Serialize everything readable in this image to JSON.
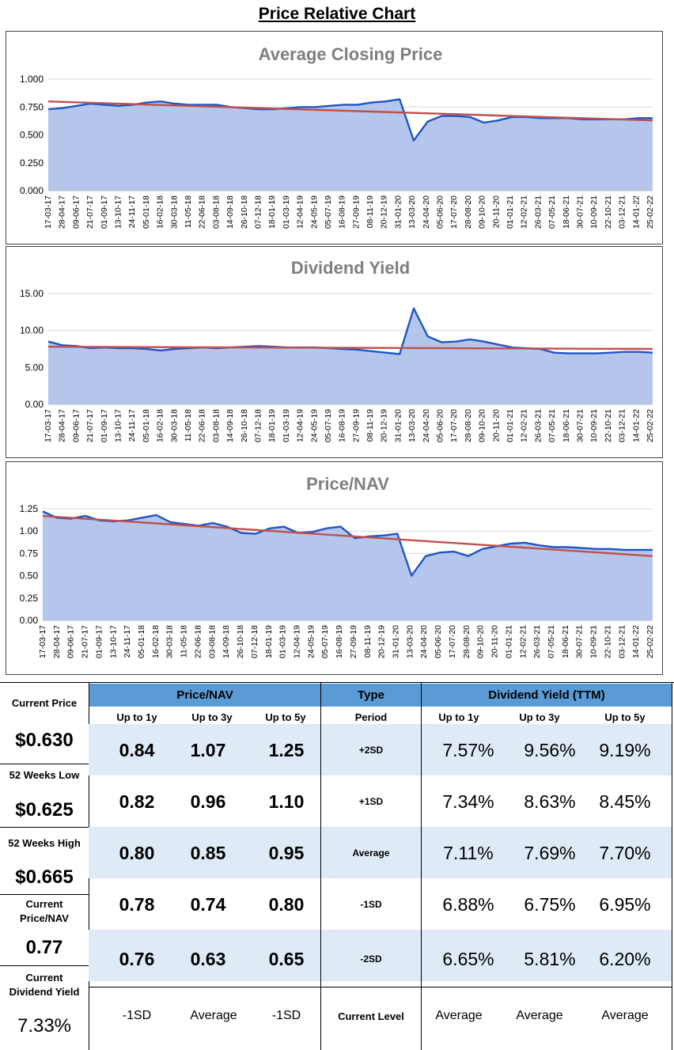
{
  "page_title": "Price Relative Chart",
  "chart_data": [
    {
      "type": "area",
      "title": "Average Closing Price",
      "ylim": [
        0,
        1.0
      ],
      "yticks": [
        "1.000",
        "0.750",
        "0.500",
        "0.250",
        "0.000"
      ],
      "ytick_values": [
        1.0,
        0.75,
        0.5,
        0.25,
        0.0
      ],
      "xticks": [
        "17-03-17",
        "28-04-17",
        "09-06-17",
        "21-07-17",
        "01-09-17",
        "13-10-17",
        "24-11-17",
        "05-01-18",
        "16-02-18",
        "30-03-18",
        "11-05-18",
        "22-06-18",
        "03-08-18",
        "14-09-18",
        "26-10-18",
        "07-12-18",
        "18-01-19",
        "01-03-19",
        "12-04-19",
        "24-05-19",
        "05-07-19",
        "16-08-19",
        "27-09-19",
        "08-11-19",
        "20-12-19",
        "31-01-20",
        "13-03-20",
        "24-04-20",
        "05-06-20",
        "17-07-20",
        "28-08-20",
        "09-10-20",
        "20-11-20",
        "01-01-21",
        "12-02-21",
        "26-03-21",
        "07-05-21",
        "18-06-21",
        "30-07-21",
        "10-09-21",
        "22-10-21",
        "03-12-21",
        "14-01-22",
        "25-02-22"
      ],
      "values": [
        0.73,
        0.74,
        0.76,
        0.78,
        0.77,
        0.76,
        0.77,
        0.79,
        0.8,
        0.78,
        0.77,
        0.77,
        0.77,
        0.75,
        0.74,
        0.73,
        0.73,
        0.74,
        0.75,
        0.75,
        0.76,
        0.77,
        0.77,
        0.79,
        0.8,
        0.82,
        0.45,
        0.62,
        0.67,
        0.67,
        0.66,
        0.61,
        0.63,
        0.66,
        0.66,
        0.65,
        0.65,
        0.65,
        0.64,
        0.64,
        0.64,
        0.64,
        0.65,
        0.65
      ],
      "trend": [
        0.8,
        0.63
      ]
    },
    {
      "type": "area",
      "title": "Dividend Yield",
      "ylim": [
        0,
        15
      ],
      "yticks": [
        "15.00",
        "10.00",
        "5.00",
        "0.00"
      ],
      "ytick_values": [
        15,
        10,
        5,
        0
      ],
      "xticks": [
        "17-03-17",
        "28-04-17",
        "09-06-17",
        "21-07-17",
        "01-09-17",
        "13-10-17",
        "24-11-17",
        "05-01-18",
        "16-02-18",
        "30-03-18",
        "11-05-18",
        "22-06-18",
        "03-08-18",
        "14-09-18",
        "26-10-18",
        "07-12-18",
        "18-01-19",
        "01-03-19",
        "12-04-19",
        "24-05-19",
        "05-07-19",
        "16-08-19",
        "27-09-19",
        "08-11-19",
        "20-12-19",
        "31-01-20",
        "13-03-20",
        "24-04-20",
        "05-06-20",
        "17-07-20",
        "28-08-20",
        "09-10-20",
        "20-11-20",
        "01-01-21",
        "12-02-21",
        "26-03-21",
        "07-05-21",
        "18-06-21",
        "30-07-21",
        "10-09-21",
        "22-10-21",
        "03-12-21",
        "14-01-22",
        "25-02-22"
      ],
      "values": [
        8.5,
        8.0,
        7.9,
        7.6,
        7.7,
        7.6,
        7.6,
        7.5,
        7.3,
        7.5,
        7.6,
        7.7,
        7.6,
        7.7,
        7.8,
        7.9,
        7.8,
        7.7,
        7.7,
        7.7,
        7.6,
        7.5,
        7.4,
        7.2,
        7.0,
        6.8,
        13.0,
        9.2,
        8.4,
        8.5,
        8.8,
        8.5,
        8.1,
        7.7,
        7.6,
        7.5,
        7.0,
        6.9,
        6.9,
        6.9,
        7.0,
        7.1,
        7.1,
        7.0
      ],
      "trend": [
        7.8,
        7.5
      ]
    },
    {
      "type": "area",
      "title": "Price/NAV",
      "ylim": [
        0,
        1.25
      ],
      "yticks": [
        "1.25",
        "1.00",
        "0.75",
        "0.50",
        "0.25",
        "0.00"
      ],
      "ytick_values": [
        1.25,
        1.0,
        0.75,
        0.5,
        0.25,
        0.0
      ],
      "xticks": [
        "17-03-17",
        "28-04-17",
        "09-06-17",
        "21-07-17",
        "01-09-17",
        "13-10-17",
        "24-11-17",
        "05-01-18",
        "16-02-18",
        "30-03-18",
        "11-05-18",
        "22-06-18",
        "03-08-18",
        "14-09-18",
        "26-10-18",
        "07-12-18",
        "18-01-19",
        "01-03-19",
        "12-04-19",
        "24-05-19",
        "05-07-19",
        "16-08-19",
        "27-09-19",
        "08-11-19",
        "20-12-19",
        "31-01-20",
        "13-03-20",
        "24-04-20",
        "05-06-20",
        "17-07-20",
        "28-08-20",
        "09-10-20",
        "20-11-20",
        "01-01-21",
        "12-02-21",
        "26-03-21",
        "07-05-21",
        "18-06-21",
        "30-07-21",
        "10-09-21",
        "22-10-21",
        "03-12-21",
        "14-01-22",
        "25-02-22"
      ],
      "values": [
        1.22,
        1.15,
        1.14,
        1.17,
        1.12,
        1.11,
        1.12,
        1.15,
        1.18,
        1.1,
        1.08,
        1.06,
        1.09,
        1.05,
        0.98,
        0.97,
        1.03,
        1.05,
        0.98,
        0.99,
        1.03,
        1.05,
        0.92,
        0.94,
        0.95,
        0.97,
        0.5,
        0.72,
        0.76,
        0.77,
        0.72,
        0.8,
        0.83,
        0.86,
        0.87,
        0.84,
        0.82,
        0.82,
        0.81,
        0.8,
        0.8,
        0.79,
        0.79,
        0.79
      ],
      "trend": [
        1.17,
        0.72
      ]
    }
  ],
  "summary": {
    "current_price_label": "Current Price",
    "current_price": "$0.630",
    "low_label": "52 Weeks Low",
    "low": "$0.625",
    "high_label": "52 Weeks High",
    "high": "$0.665",
    "cur_pnav_label_1": "Current",
    "cur_pnav_label_2": "Price/NAV",
    "cur_pnav": "0.77",
    "cur_dy_label_1": "Current",
    "cur_dy_label_2": "Dividend Yield",
    "cur_dy": "7.33%"
  },
  "table": {
    "pnav_header": "Price/NAV",
    "type_header": "Type",
    "dy_header": "Dividend Yield (TTM)",
    "sub_pnav": [
      "Up to 1y",
      "Up to 3y",
      "Up to 5y"
    ],
    "sub_type": "Period",
    "sub_dy": [
      "Up to 1y",
      "Up to 3y",
      "Up to 5y"
    ],
    "rows": [
      {
        "pnav": [
          "0.84",
          "1.07",
          "1.25"
        ],
        "type": "+2SD",
        "dy": [
          "7.57%",
          "9.56%",
          "9.19%"
        ]
      },
      {
        "pnav": [
          "0.82",
          "0.96",
          "1.10"
        ],
        "type": "+1SD",
        "dy": [
          "7.34%",
          "8.63%",
          "8.45%"
        ]
      },
      {
        "pnav": [
          "0.80",
          "0.85",
          "0.95"
        ],
        "type": "Average",
        "dy": [
          "7.11%",
          "7.69%",
          "7.70%"
        ]
      },
      {
        "pnav": [
          "0.78",
          "0.74",
          "0.80"
        ],
        "type": "-1SD",
        "dy": [
          "6.88%",
          "6.75%",
          "6.95%"
        ]
      },
      {
        "pnav": [
          "0.76",
          "0.63",
          "0.65"
        ],
        "type": "-2SD",
        "dy": [
          "6.65%",
          "5.81%",
          "6.20%"
        ]
      }
    ],
    "current_level": {
      "pnav": [
        "-1SD",
        "Average",
        "-1SD"
      ],
      "type": "Current Level",
      "dy": [
        "Average",
        "Average",
        "Average"
      ]
    }
  }
}
